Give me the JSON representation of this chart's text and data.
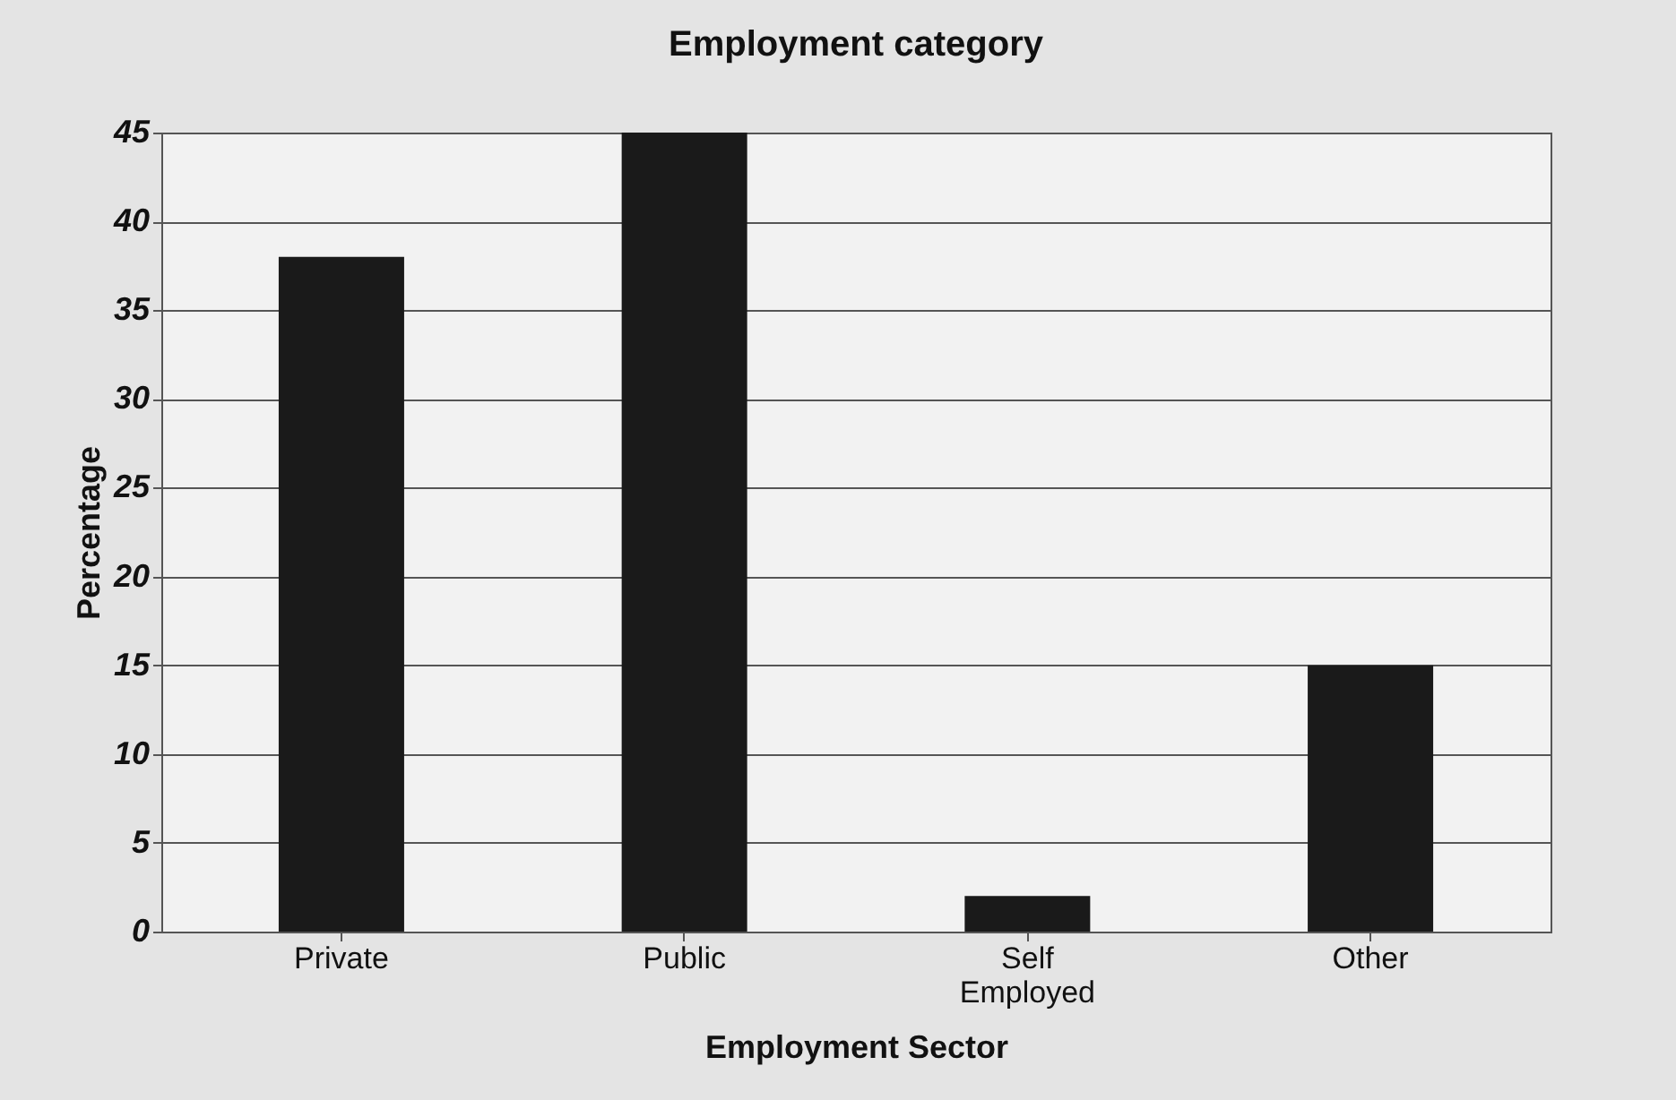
{
  "chart_data": {
    "type": "bar",
    "title": "Employment category",
    "xlabel": "Employment Sector",
    "ylabel": "Percentage",
    "categories": [
      "Private",
      "Public",
      "Self Employed",
      "Other"
    ],
    "values": [
      38,
      45,
      2,
      15
    ],
    "color": "#1a1a1a",
    "ylim": [
      0,
      45
    ],
    "yticks": [
      0,
      5,
      10,
      15,
      20,
      25,
      30,
      35,
      40,
      45
    ],
    "grid": "y"
  }
}
